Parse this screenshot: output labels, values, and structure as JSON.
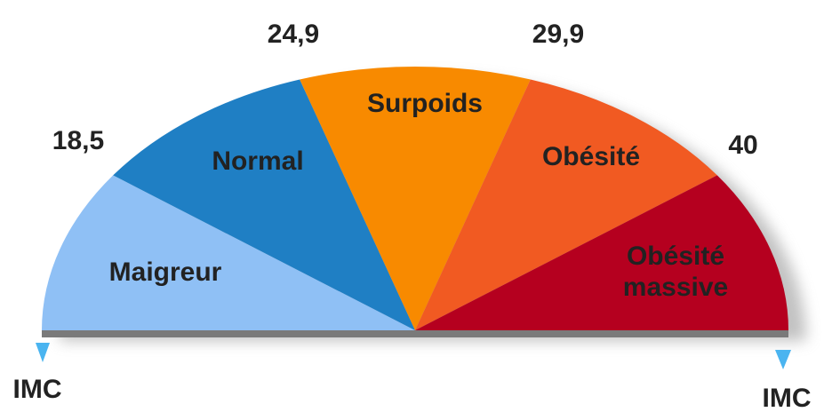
{
  "segments": [
    {
      "label": [
        "Maigreur"
      ]
    },
    {
      "label": [
        "Normal"
      ]
    },
    {
      "label": [
        "Surpoids"
      ]
    },
    {
      "label": [
        "Obésité"
      ]
    },
    {
      "label": [
        "Obésité",
        "massive"
      ]
    }
  ],
  "boundaries": [
    "18,5",
    "24,9",
    "29,9",
    "40"
  ],
  "axis_label_left": "IMC",
  "axis_label_right": "IMC"
}
